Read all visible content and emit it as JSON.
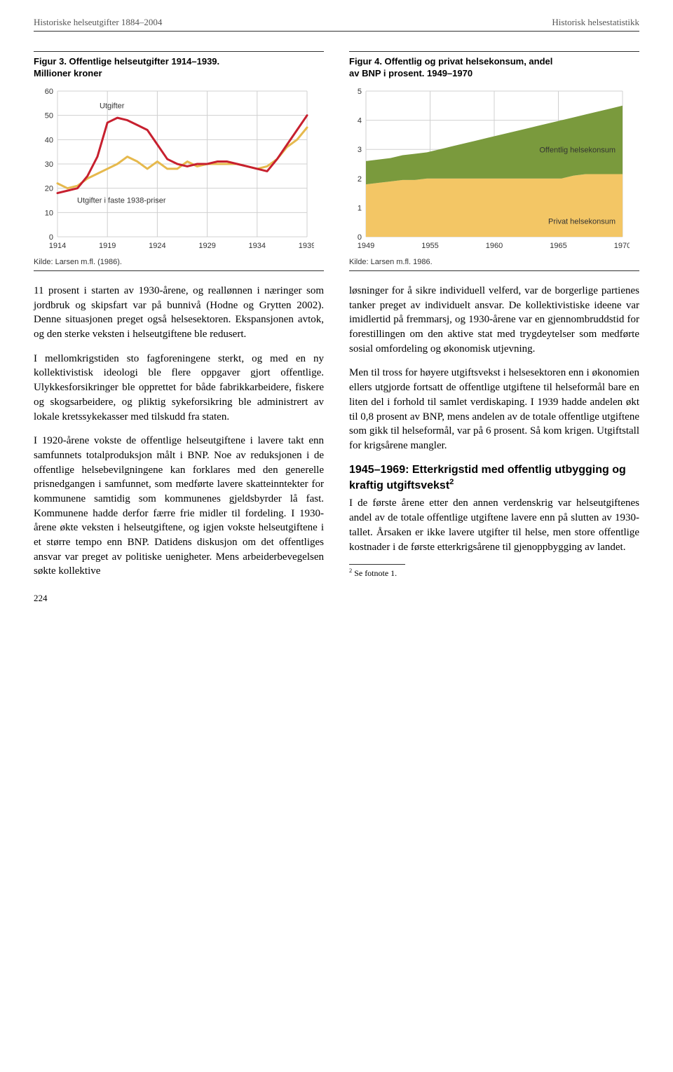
{
  "header": {
    "left": "Historiske helseutgifter 1884–2004",
    "right": "Historisk helsestatistikk"
  },
  "figure3": {
    "type": "line",
    "title_line1": "Figur 3. Offentlige helseutgifter 1914–1939.",
    "title_line2": "Millioner kroner",
    "legend_utgifter": "Utgifter",
    "legend_faste": "Utgifter i faste 1938-priser",
    "x_ticks": [
      "1914",
      "1919",
      "1924",
      "1929",
      "1934",
      "1939"
    ],
    "y_ticks": [
      0,
      10,
      20,
      30,
      40,
      50,
      60
    ],
    "ylim": [
      0,
      60
    ],
    "grid_color": "#d0d0d0",
    "line_utgifter_color": "#c7202f",
    "line_faste_color": "#e6b94d",
    "line_width": 3,
    "tick_font": 11,
    "series_utgifter": [
      18,
      19,
      20,
      25,
      33,
      47,
      49,
      48,
      46,
      44,
      38,
      32,
      30,
      29,
      30,
      30,
      31,
      31,
      30,
      29,
      28,
      27,
      32,
      38,
      44,
      50
    ],
    "series_faste": [
      22,
      20,
      21,
      24,
      26,
      28,
      30,
      33,
      31,
      28,
      31,
      28,
      28,
      31,
      29,
      30,
      30,
      30,
      30,
      29,
      28,
      29,
      32,
      37,
      40,
      45
    ],
    "kilde": "Kilde: Larsen m.fl. (1986)."
  },
  "figure4": {
    "type": "area",
    "title_line1": "Figur 4. Offentlig og privat helsekonsum, andel",
    "title_line2": "av BNP i prosent. 1949–1970",
    "legend_offentlig": "Offentlig helsekonsum",
    "legend_privat": "Privat helsekonsum",
    "x_ticks": [
      "1949",
      "1955",
      "1960",
      "1965",
      "1970"
    ],
    "y_ticks": [
      0,
      1,
      2,
      3,
      4,
      5
    ],
    "ylim": [
      0,
      5
    ],
    "grid_color": "#d0d0d0",
    "area_top_color": "#7a9a3d",
    "area_bottom_color": "#f3c665",
    "tick_font": 11,
    "series_privat": [
      1.8,
      1.85,
      1.9,
      1.95,
      1.95,
      2.0,
      2.0,
      2.0,
      2.0,
      2.0,
      2.0,
      2.0,
      2.0,
      2.0,
      2.0,
      2.0,
      2.0,
      2.1,
      2.15,
      2.15,
      2.15,
      2.15
    ],
    "series_total": [
      2.6,
      2.65,
      2.7,
      2.8,
      2.85,
      2.9,
      3.0,
      3.1,
      3.2,
      3.3,
      3.4,
      3.5,
      3.6,
      3.7,
      3.8,
      3.9,
      4.0,
      4.1,
      4.2,
      4.3,
      4.4,
      4.5
    ],
    "kilde": "Kilde: Larsen m.fl. 1986."
  },
  "left_col": {
    "p1": "11 prosent i starten av 1930-årene, og reallønnen i næringer som jordbruk og skipsfart var på bunnivå (Hodne og Grytten 2002). Denne situasjonen preget også helsesektoren. Ekspansjonen avtok, og den sterke veksten i helseutgiftene ble redusert.",
    "p2": "I mellomkrigstiden sto fagforeningene sterkt, og med en ny kollektivistisk ideologi ble flere oppgaver gjort offentlige. Ulykkesforsikringer ble opprettet for både fabrikkarbeidere, fiskere og skogsarbeidere, og pliktig sykeforsikring ble administrert av lokale kretssykekasser med tilskudd fra staten.",
    "p3": "I 1920-årene vokste de offentlige helseutgiftene i lavere takt enn samfunnets totalproduksjon målt i BNP. Noe av reduksjonen i de offentlige helsebevilgningene kan forklares med den generelle prisnedgangen i samfunnet, som medførte lavere skatteinntekter for kommunene samtidig som kommunenes gjeldsbyrder lå fast. Kommunene hadde derfor færre frie midler til fordeling. I 1930-årene økte veksten i helseutgiftene, og igjen vokste helseutgiftene i et større tempo enn BNP. Datidens diskusjon om det offentliges ansvar var preget av politiske uenigheter. Mens arbeiderbevegelsen søkte kollektive"
  },
  "right_col": {
    "p1": "løsninger for å sikre individuell velferd, var de borgerlige partienes tanker preget av individuelt ansvar. De kollektivistiske ideene var imidlertid på fremmarsj, og 1930-årene var en gjennombruddstid for forestillingen om den aktive stat med trygdeytelser som medførte sosial omfordeling og økonomisk utjevning.",
    "p2": "Men til tross for høyere utgiftsvekst i helsesektoren enn i økonomien ellers utgjorde fortsatt de offentlige utgiftene til helseformål bare en liten del i forhold til samlet verdiskaping. I 1939 hadde andelen økt til 0,8 prosent av BNP, mens andelen av de totale offentlige utgiftene som gikk til helseformål, var på 6 prosent. Så kom krigen. Utgiftstall for krigsårene mangler.",
    "heading": "1945–1969: Etterkrigstid med offentlig utbygging og kraftig utgiftsvekst",
    "heading_sup": "2",
    "p3": "I de første årene etter den annen verdenskrig var helseutgiftenes andel av de totale offentlige utgiftene lavere enn på slutten av 1930-tallet. Årsaken er ikke lavere utgifter til helse, men store offentlige kostnader i de første etterkrigsårene til gjenoppbygging av landet.",
    "footnote": "Se fotnote 1.",
    "footnote_num": "2"
  },
  "page_number": "224"
}
